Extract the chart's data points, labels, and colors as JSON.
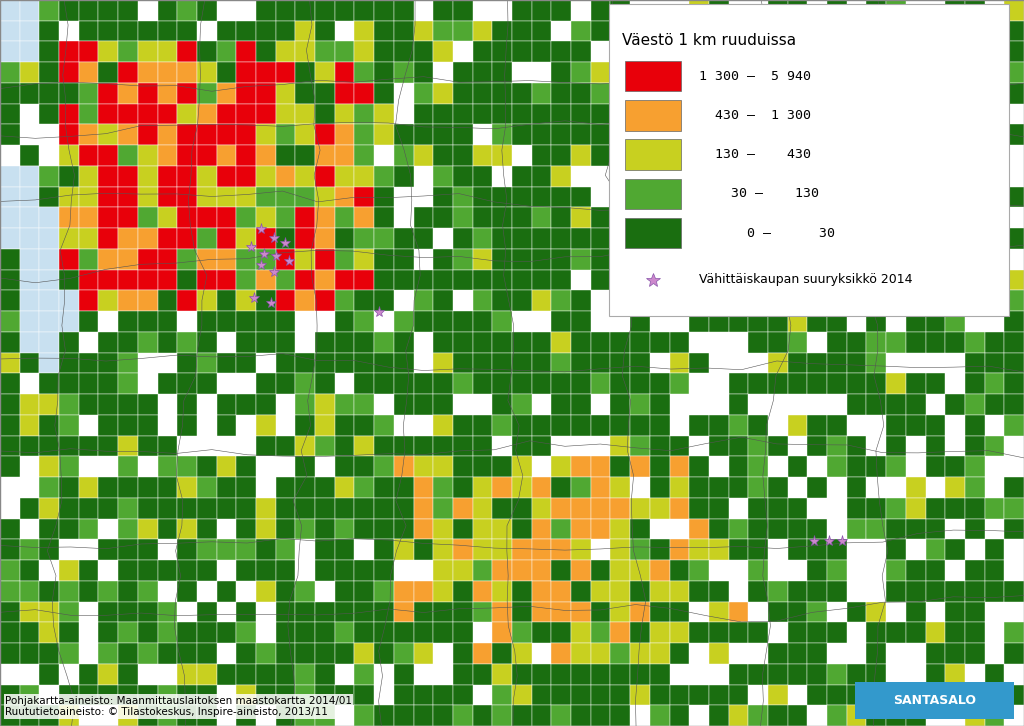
{
  "title": "",
  "legend_title": "Väestö 1 km ruuduissa",
  "legend_items": [
    {
      "label": "1 300 –  5 940",
      "color": "#e8000a"
    },
    {
      "label": "  430 –  1 300",
      "color": "#f7a030"
    },
    {
      "label": "  130 –    430",
      "color": "#c8d020"
    },
    {
      "label": "    30 –    130",
      "color": "#50a832"
    },
    {
      "label": "      0 –      30",
      "color": "#1a6e10"
    }
  ],
  "marker_label": "Vähittäiskaupan suuryksikkö 2014",
  "marker_color": "#cc88cc",
  "footer_line1": "Pohjakartta-aineisto: Maanmittauslaitoksen maastokartta 2014/01",
  "footer_line2": "Ruututietoaineisto: © Tilastokeskus, Inspire-aineisto, 2013/11",
  "santasalo_bg": "#3399cc",
  "santasalo_text": "SANTASALO",
  "bg_color": "#ffffff",
  "grid_colors": {
    "red": "#e8000a",
    "orange": "#f7a030",
    "yellow_green": "#c8d020",
    "light_green": "#50a832",
    "dark_green": "#1a6e10",
    "white": "#ffffff",
    "water": "#c8e0f0"
  },
  "seed": 42,
  "ncols": 52,
  "nrows": 35,
  "figsize": [
    10.24,
    7.26
  ],
  "dpi": 100
}
